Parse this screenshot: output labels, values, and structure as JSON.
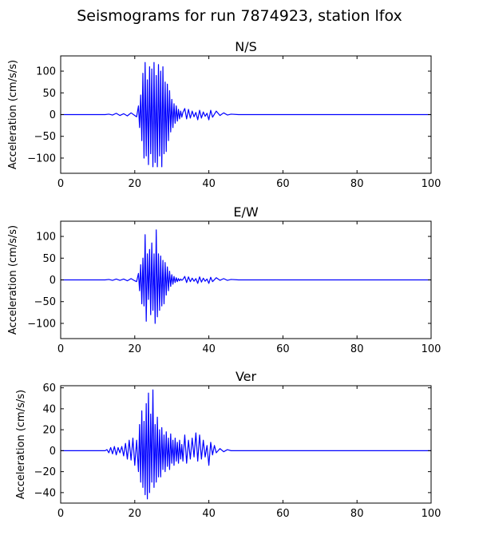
{
  "figure": {
    "suptitle": "Seismograms for run 7874923, station lfox"
  },
  "chart_data": [
    {
      "type": "line",
      "title": "N/S",
      "xlabel": "",
      "ylabel": "Acceleration (cm/s/s)",
      "xlim": [
        0,
        100
      ],
      "ylim": [
        -135,
        135
      ],
      "xticks": [
        0,
        20,
        40,
        60,
        80,
        100
      ],
      "yticks": [
        -100,
        -50,
        0,
        50,
        100
      ],
      "grid": false,
      "color": "#0000ff",
      "series": [
        {
          "x": [
            0,
            12,
            13,
            14,
            15,
            16,
            17,
            18,
            19,
            20,
            20.5,
            21,
            21.3,
            21.6,
            21.9,
            22.2,
            22.5,
            22.8,
            23.1,
            23.4,
            23.7,
            24,
            24.3,
            24.6,
            24.9,
            25.2,
            25.5,
            25.8,
            26.1,
            26.4,
            26.7,
            27,
            27.3,
            27.6,
            27.9,
            28.2,
            28.5,
            28.8,
            29.1,
            29.4,
            29.7,
            30,
            30.3,
            30.6,
            30.9,
            31.2,
            31.5,
            31.8,
            32.1,
            32.4,
            32.7,
            33,
            33.5,
            34,
            34.5,
            35,
            35.5,
            36,
            36.5,
            37,
            37.5,
            38,
            38.5,
            39,
            39.5,
            40,
            40.5,
            41,
            42,
            43,
            44,
            45,
            46,
            48,
            100
          ],
          "y": [
            0,
            0,
            1,
            -1,
            3,
            -2,
            2,
            -3,
            4,
            -2,
            -5,
            20,
            -30,
            45,
            -60,
            95,
            -100,
            120,
            -95,
            80,
            -115,
            110,
            -90,
            105,
            -120,
            120,
            -110,
            90,
            -120,
            115,
            -95,
            100,
            -120,
            110,
            -90,
            75,
            -85,
            70,
            -60,
            55,
            -40,
            35,
            -30,
            25,
            -20,
            20,
            -15,
            12,
            -10,
            8,
            -6,
            5,
            14,
            -10,
            12,
            -8,
            8,
            -5,
            5,
            -12,
            10,
            -8,
            6,
            -4,
            3,
            -12,
            10,
            -6,
            8,
            -2,
            4,
            -1,
            1,
            0,
            0
          ]
        }
      ]
    },
    {
      "type": "line",
      "title": "E/W",
      "xlabel": "",
      "ylabel": "Acceleration (cm/s/s)",
      "xlim": [
        0,
        100
      ],
      "ylim": [
        -135,
        135
      ],
      "xticks": [
        0,
        20,
        40,
        60,
        80,
        100
      ],
      "yticks": [
        -100,
        -50,
        0,
        50,
        100
      ],
      "grid": false,
      "color": "#0000ff",
      "series": [
        {
          "x": [
            0,
            12,
            13,
            14,
            15,
            16,
            17,
            18,
            19,
            20,
            20.5,
            21,
            21.3,
            21.6,
            21.9,
            22.2,
            22.5,
            22.8,
            23.1,
            23.4,
            23.7,
            24,
            24.3,
            24.6,
            24.9,
            25.2,
            25.5,
            25.8,
            26.1,
            26.4,
            26.7,
            27,
            27.3,
            27.6,
            27.9,
            28.2,
            28.5,
            28.8,
            29.1,
            29.4,
            29.7,
            30,
            30.3,
            30.6,
            30.9,
            31.2,
            31.5,
            31.8,
            32.1,
            32.4,
            32.7,
            33,
            33.5,
            34,
            34.5,
            35,
            35.5,
            36,
            36.5,
            37,
            37.5,
            38,
            38.5,
            39,
            39.5,
            40,
            40.5,
            41,
            42,
            43,
            44,
            45,
            46,
            48,
            100
          ],
          "y": [
            0,
            0,
            1,
            -1,
            2,
            -1,
            2,
            -2,
            3,
            -2,
            -4,
            15,
            -25,
            35,
            -55,
            50,
            -60,
            104,
            -95,
            60,
            -45,
            70,
            -80,
            85,
            -70,
            60,
            -100,
            115,
            -85,
            60,
            -70,
            55,
            -60,
            45,
            -55,
            40,
            -35,
            30,
            -25,
            20,
            -15,
            12,
            -10,
            8,
            -6,
            5,
            -4,
            3,
            -2,
            2,
            -1,
            1,
            8,
            -6,
            7,
            -4,
            4,
            -3,
            3,
            -8,
            7,
            -5,
            4,
            -3,
            2,
            -8,
            6,
            -4,
            5,
            -1,
            3,
            -1,
            1,
            0,
            0
          ]
        }
      ]
    },
    {
      "type": "line",
      "title": "Ver",
      "xlabel": "",
      "ylabel": "Acceleration (cm/s/s)",
      "xlim": [
        0,
        100
      ],
      "ylim": [
        -50,
        62
      ],
      "xticks": [
        0,
        20,
        40,
        60,
        80,
        100
      ],
      "yticks": [
        -40,
        -20,
        0,
        20,
        40,
        60
      ],
      "grid": false,
      "color": "#0000ff",
      "series": [
        {
          "x": [
            0,
            12,
            12.5,
            13,
            13.5,
            14,
            14.5,
            15,
            15.5,
            16,
            16.5,
            17,
            17.5,
            18,
            18.5,
            19,
            19.5,
            20,
            20.5,
            21,
            21.3,
            21.6,
            21.9,
            22.2,
            22.5,
            22.8,
            23.1,
            23.4,
            23.7,
            24,
            24.3,
            24.6,
            24.9,
            25.2,
            25.5,
            25.8,
            26.1,
            26.4,
            26.7,
            27,
            27.3,
            27.6,
            27.9,
            28.2,
            28.5,
            28.8,
            29.1,
            29.4,
            29.7,
            30,
            30.3,
            30.6,
            30.9,
            31.2,
            31.5,
            31.8,
            32.1,
            32.4,
            32.7,
            33,
            33.5,
            34,
            34.5,
            35,
            35.5,
            36,
            36.5,
            37,
            37.5,
            38,
            38.5,
            39,
            39.5,
            40,
            40.5,
            41,
            41.5,
            42,
            43,
            44,
            45,
            46,
            48,
            100
          ],
          "y": [
            0,
            0,
            1,
            -2,
            3,
            -3,
            4,
            -4,
            3,
            -2,
            4,
            -5,
            7,
            -8,
            10,
            -9,
            12,
            -14,
            10,
            -20,
            25,
            -30,
            38,
            -35,
            28,
            -42,
            45,
            -46,
            55,
            -40,
            35,
            -30,
            58,
            -35,
            25,
            -30,
            32,
            -25,
            20,
            -25,
            22,
            -18,
            15,
            -20,
            18,
            -15,
            12,
            -18,
            16,
            -12,
            10,
            -14,
            12,
            -10,
            8,
            -12,
            10,
            -8,
            6,
            -10,
            15,
            -12,
            10,
            -8,
            12,
            -6,
            17,
            -10,
            15,
            -8,
            10,
            -6,
            5,
            -14,
            8,
            -4,
            5,
            -2,
            2,
            -1,
            1,
            0,
            0,
            0
          ]
        }
      ]
    }
  ]
}
